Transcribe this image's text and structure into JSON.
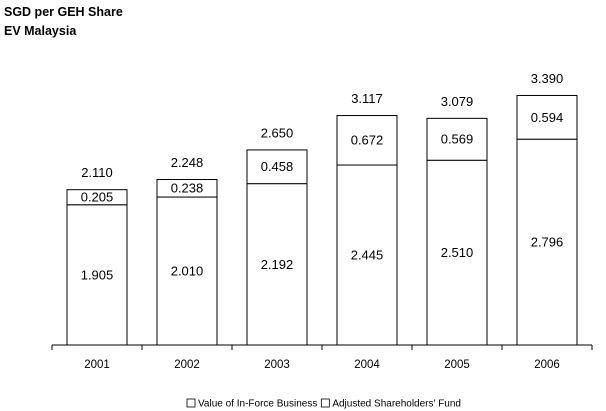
{
  "chart_data": {
    "type": "stacked_bar",
    "title": "SGD per GEH Share",
    "subtitle": "EV  Malaysia",
    "categories": [
      "2001",
      "2002",
      "2003",
      "2004",
      "2005",
      "2006"
    ],
    "series": [
      {
        "name": "Adjusted Shareholders' Fund",
        "color": "#ffffff",
        "values": [
          1.905,
          2.01,
          2.192,
          2.445,
          2.51,
          2.796
        ],
        "value_labels": [
          "1.905",
          "2.010",
          "2.192",
          "2.445",
          "2.510",
          "2.796"
        ]
      },
      {
        "name": "Value of In-Force Business",
        "color": "#ffffff",
        "values": [
          0.205,
          0.238,
          0.458,
          0.672,
          0.569,
          0.594
        ],
        "value_labels": [
          "0.205",
          "0.238",
          "0.458",
          "0.672",
          "0.569",
          "0.594"
        ]
      }
    ],
    "total_labels": [
      "2.110",
      "2.248",
      "2.650",
      "3.117",
      "3.079",
      "3.390"
    ],
    "legend_order": [
      1,
      0
    ],
    "ylim": [
      0,
      3.6
    ]
  }
}
